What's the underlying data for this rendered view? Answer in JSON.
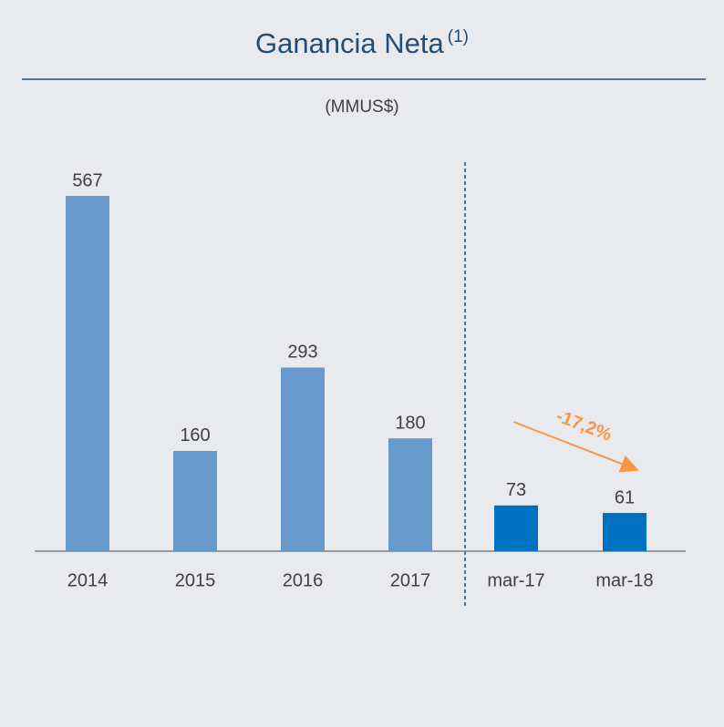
{
  "chart_data": {
    "type": "bar",
    "title": "Ganancia Neta",
    "title_superscript": "(1)",
    "subtitle": "(MMUS$)",
    "categories": [
      "2014",
      "2015",
      "2016",
      "2017",
      "mar-17",
      "mar-18"
    ],
    "values": [
      567,
      160,
      293,
      180,
      73,
      61
    ],
    "colors": [
      "#6699cc",
      "#6699cc",
      "#6699cc",
      "#6699cc",
      "#0070c0",
      "#0070c0"
    ],
    "annotation": "-17,2%",
    "annotation_color": "#f79646"
  }
}
